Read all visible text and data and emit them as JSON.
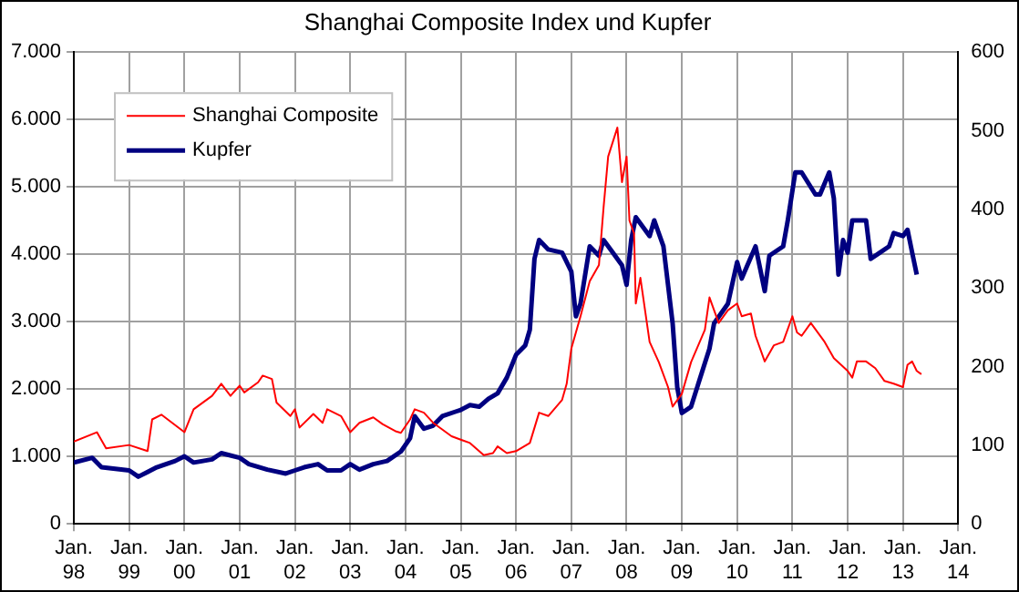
{
  "chart_data": {
    "type": "line",
    "title": "Shanghai Composite Index und Kupfer",
    "series": [
      {
        "name": "Shanghai Composite",
        "color": "#ff0000",
        "x": [
          "1998-01",
          "1998-06",
          "1998-08",
          "1999-01",
          "1999-05",
          "1999-06",
          "1999-08",
          "2000-01",
          "2000-03",
          "2000-07",
          "2000-09",
          "2000-11",
          "2001-01",
          "2001-02",
          "2001-05",
          "2001-06",
          "2001-08",
          "2001-09",
          "2001-12",
          "2002-01",
          "2002-02",
          "2002-05",
          "2002-07",
          "2002-08",
          "2002-11",
          "2003-01",
          "2003-03",
          "2003-06",
          "2003-08",
          "2003-11",
          "2003-12",
          "2004-02",
          "2004-03",
          "2004-05",
          "2004-07",
          "2004-11",
          "2005-01",
          "2005-03",
          "2005-06",
          "2005-08",
          "2005-09",
          "2005-11",
          "2006-01",
          "2006-04",
          "2006-06",
          "2006-08",
          "2006-11",
          "2006-12",
          "2007-01",
          "2007-03",
          "2007-05",
          "2007-07",
          "2007-08",
          "2007-09",
          "2007-11",
          "2007-12",
          "2008-01",
          "2008-01-20",
          "2008-02-20",
          "2008-03",
          "2008-04",
          "2008-06",
          "2008-08",
          "2008-10",
          "2008-11",
          "2009-01",
          "2009-03",
          "2009-06",
          "2009-07",
          "2009-09",
          "2009-11",
          "2010-01",
          "2010-02",
          "2010-04",
          "2010-05",
          "2010-07",
          "2010-09",
          "2010-11",
          "2011-01",
          "2011-02",
          "2011-03",
          "2011-05",
          "2011-08",
          "2011-10",
          "2012-01",
          "2012-02",
          "2012-03",
          "2012-05",
          "2012-07",
          "2012-09",
          "2012-11",
          "2013-01",
          "2013-02",
          "2013-03",
          "2013-04",
          "2013-05"
        ],
        "values": [
          1220,
          1360,
          1120,
          1170,
          1080,
          1550,
          1620,
          1360,
          1700,
          1900,
          2080,
          1900,
          2050,
          1950,
          2100,
          2200,
          2150,
          1800,
          1600,
          1700,
          1430,
          1630,
          1500,
          1700,
          1600,
          1360,
          1500,
          1580,
          1480,
          1370,
          1350,
          1550,
          1700,
          1650,
          1500,
          1300,
          1250,
          1200,
          1020,
          1050,
          1150,
          1050,
          1080,
          1200,
          1650,
          1600,
          1840,
          2080,
          2600,
          3080,
          3600,
          3840,
          4690,
          5450,
          5880,
          5070,
          5450,
          4500,
          4310,
          3270,
          3650,
          2700,
          2400,
          2030,
          1740,
          1930,
          2400,
          2880,
          3360,
          2980,
          3170,
          3270,
          3080,
          3120,
          2790,
          2410,
          2650,
          2700,
          3080,
          2840,
          2790,
          2980,
          2700,
          2460,
          2270,
          2170,
          2410,
          2410,
          2310,
          2120,
          2080,
          2030,
          2360,
          2410,
          2270,
          2220
        ]
      },
      {
        "name": "Kupfer",
        "color": "#000080",
        "axis": "y2",
        "x": [
          "1998-01",
          "1998-05",
          "1998-07",
          "1999-01",
          "1999-03",
          "1999-05",
          "1999-07",
          "1999-11",
          "2000-01",
          "2000-03",
          "2000-07",
          "2000-09",
          "2001-01",
          "2001-03",
          "2001-07",
          "2001-11",
          "2002-01",
          "2002-03",
          "2002-06",
          "2002-08",
          "2002-11",
          "2003-01",
          "2003-03",
          "2003-06",
          "2003-09",
          "2003-12",
          "2004-02",
          "2004-03",
          "2004-05",
          "2004-07",
          "2004-09",
          "2004-12",
          "2005-01",
          "2005-03",
          "2005-05",
          "2005-07",
          "2005-09",
          "2005-11",
          "2006-01",
          "2006-03",
          "2006-04",
          "2006-05",
          "2006-06",
          "2006-08",
          "2006-11",
          "2007-01",
          "2007-02",
          "2007-03",
          "2007-05",
          "2007-07",
          "2007-08",
          "2007-10",
          "2007-12",
          "2008-01",
          "2008-02",
          "2008-03",
          "2008-06",
          "2008-07",
          "2008-09",
          "2008-11",
          "2008-12",
          "2009-01",
          "2009-03",
          "2009-05",
          "2009-07",
          "2009-08",
          "2009-11",
          "2010-01",
          "2010-02",
          "2010-05",
          "2010-07",
          "2010-08",
          "2010-11",
          "2010-12",
          "2011-01-20",
          "2011-03",
          "2011-06",
          "2011-07",
          "2011-09",
          "2011-10",
          "2011-11",
          "2011-12",
          "2012-01",
          "2012-02",
          "2012-05",
          "2012-06",
          "2012-08",
          "2012-10",
          "2012-11",
          "2013-01",
          "2013-02",
          "2013-03",
          "2013-04"
        ],
        "values": [
          78,
          84,
          72,
          68,
          60,
          66,
          72,
          80,
          86,
          78,
          82,
          90,
          84,
          76,
          69,
          64,
          68,
          72,
          76,
          68,
          68,
          76,
          69,
          76,
          80,
          92,
          109,
          137,
          121,
          125,
          137,
          143,
          145,
          151,
          149,
          159,
          166,
          186,
          215,
          227,
          247,
          337,
          361,
          349,
          345,
          321,
          264,
          280,
          353,
          341,
          361,
          345,
          329,
          304,
          361,
          390,
          366,
          386,
          353,
          255,
          174,
          141,
          149,
          186,
          223,
          255,
          280,
          333,
          312,
          353,
          296,
          341,
          353,
          386,
          447,
          447,
          419,
          419,
          447,
          414,
          317,
          361,
          345,
          386,
          386,
          337,
          345,
          353,
          370,
          366,
          374,
          345,
          317
        ]
      }
    ],
    "xlim": [
      "1998-01",
      "2014-01"
    ],
    "xticks": [
      {
        "value": "1998-01",
        "label": "Jan.\n98"
      },
      {
        "value": "1999-01",
        "label": "Jan.\n99"
      },
      {
        "value": "2000-01",
        "label": "Jan.\n00"
      },
      {
        "value": "2001-01",
        "label": "Jan.\n01"
      },
      {
        "value": "2002-01",
        "label": "Jan.\n02"
      },
      {
        "value": "2003-01",
        "label": "Jan.\n03"
      },
      {
        "value": "2004-01",
        "label": "Jan.\n04"
      },
      {
        "value": "2005-01",
        "label": "Jan.\n05"
      },
      {
        "value": "2006-01",
        "label": "Jan.\n06"
      },
      {
        "value": "2007-01",
        "label": "Jan.\n07"
      },
      {
        "value": "2008-01",
        "label": "Jan.\n08"
      },
      {
        "value": "2009-01",
        "label": "Jan.\n09"
      },
      {
        "value": "2010-01",
        "label": "Jan.\n10"
      },
      {
        "value": "2011-01",
        "label": "Jan.\n11"
      },
      {
        "value": "2012-01",
        "label": "Jan.\n12"
      },
      {
        "value": "2013-01",
        "label": "Jan.\n13"
      },
      {
        "value": "2014-01",
        "label": "Jan.\n14"
      }
    ],
    "ylim": [
      0,
      7000
    ],
    "yticks": [
      0,
      {
        "value": 1000,
        "label": "1.000"
      },
      {
        "value": 2000,
        "label": "2.000"
      },
      {
        "value": 3000,
        "label": "3.000"
      },
      {
        "value": 4000,
        "label": "4.000"
      },
      {
        "value": 5000,
        "label": "5.000"
      },
      {
        "value": 6000,
        "label": "6.000"
      },
      {
        "value": 7000,
        "label": "7.000"
      }
    ],
    "y2lim": [
      0,
      600
    ],
    "y2ticks": [
      0,
      100,
      200,
      300,
      400,
      500,
      600
    ],
    "grid": true,
    "legend": "top left"
  }
}
